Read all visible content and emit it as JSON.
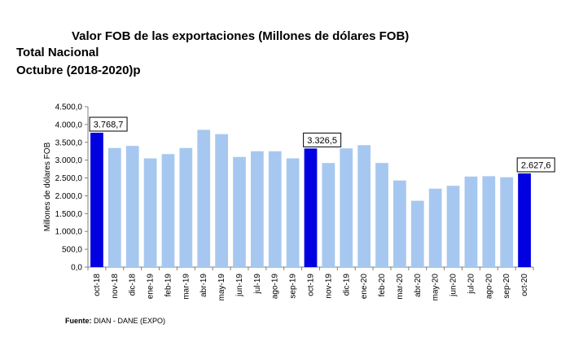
{
  "title_line1": "Valor FOB de las exportaciones (Millones de dólares FOB)",
  "title_line2": "Total Nacional",
  "title_line3": "Octubre (2018-2020)p",
  "source_label": "Fuente:",
  "source_text": " DIAN  - DANE (EXPO)",
  "colors": {
    "normal": "#a6c8f0",
    "highlight": "#0000e0",
    "axis": "#808080",
    "grid": "#d9d9d9"
  },
  "chart_data": {
    "type": "bar",
    "ylabel": "Millones de dólares FOB",
    "ylim": [
      0,
      4500
    ],
    "ytick_step": 500,
    "ytick_labels": [
      "0,0",
      "500,0",
      "1.000,0",
      "1.500,0",
      "2.000,0",
      "2.500,0",
      "3.000,0",
      "3.500,0",
      "4.000,0",
      "4.500,0"
    ],
    "grid": false,
    "categories": [
      "oct-18",
      "nov-18",
      "dic-18",
      "ene-19",
      "feb-19",
      "mar-19",
      "abr-19",
      "may-19",
      "jun-19",
      "jul-19",
      "ago-19",
      "sep-19",
      "oct-19",
      "nov-19",
      "dic-19",
      "ene-20",
      "feb-20",
      "mar-20",
      "abr-20",
      "may-20",
      "jun-20",
      "jul-20",
      "ago-20",
      "sep-20",
      "oct-20"
    ],
    "values": [
      3768.7,
      3340,
      3400,
      3050,
      3170,
      3340,
      3850,
      3730,
      3090,
      3250,
      3250,
      3050,
      3326.5,
      2920,
      3330,
      3420,
      2920,
      2430,
      1860,
      2200,
      2280,
      2540,
      2550,
      2520,
      2627.6
    ],
    "highlight_indices": [
      0,
      12,
      24
    ],
    "data_labels": [
      {
        "index": 0,
        "text": "3.768,7"
      },
      {
        "index": 12,
        "text": "3.326,5"
      },
      {
        "index": 24,
        "text": "2.627,6"
      }
    ]
  }
}
